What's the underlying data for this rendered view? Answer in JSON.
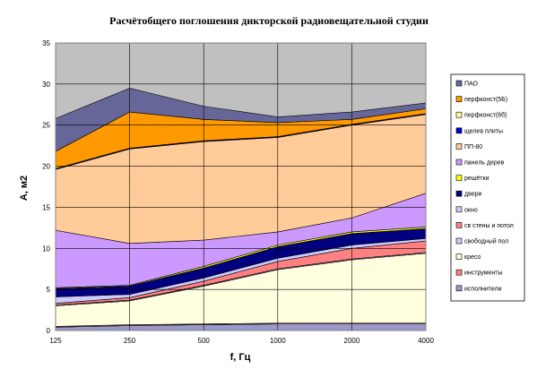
{
  "chart_data": {
    "type": "area",
    "stacked": true,
    "title": "Расчётобщего поглошения дикторской радиовещательной студии",
    "xlabel": "f, Гц",
    "ylabel": "А, м2",
    "x_tick_labels": [
      "125",
      "250",
      "500",
      "1000",
      "2000",
      "4000"
    ],
    "ylim": [
      0,
      35
    ],
    "yticks": [
      0,
      5,
      10,
      15,
      20,
      25,
      30,
      35
    ],
    "grid": true,
    "legend_position": "right",
    "series": [
      {
        "name": "исполнители",
        "color": "#9999cc",
        "values": [
          0.4,
          0.6,
          0.7,
          0.8,
          0.8,
          0.8
        ]
      },
      {
        "name": "инструменты",
        "color": "#ff8080",
        "values": [
          0.1,
          0.1,
          0.1,
          0.1,
          0.1,
          0.1
        ]
      },
      {
        "name": "кресо",
        "color": "#ffffe0",
        "values": [
          2.5,
          2.9,
          4.6,
          6.5,
          7.7,
          8.5
        ]
      },
      {
        "name": "свободный пол",
        "color": "#ccccff",
        "values": [
          0.1,
          0.1,
          0.1,
          0.1,
          0.1,
          0.1
        ]
      },
      {
        "name": "св стены и потол",
        "color": "#ff8080",
        "values": [
          0.2,
          0.3,
          0.5,
          0.9,
          1.3,
          1.4
        ]
      },
      {
        "name": "окно",
        "color": "#ccccff",
        "values": [
          0.8,
          0.4,
          0.4,
          0.4,
          0.4,
          0.3
        ]
      },
      {
        "name": "двери",
        "color": "#000080",
        "values": [
          1.0,
          1.0,
          1.2,
          1.4,
          1.4,
          1.2
        ]
      },
      {
        "name": "решётки",
        "color": "#ffff00",
        "values": [
          0.1,
          0.1,
          0.2,
          0.2,
          0.2,
          0.2
        ]
      },
      {
        "name": "панель дерев",
        "color": "#cc99ff",
        "values": [
          7.0,
          5.1,
          3.2,
          1.6,
          1.7,
          4.1
        ]
      },
      {
        "name": "ПП-80",
        "color": "#ffcc99",
        "values": [
          7.4,
          11.5,
          12.0,
          11.5,
          11.3,
          9.6
        ]
      },
      {
        "name": "щелев плиты",
        "color": "#0000cc",
        "values": [
          0.1,
          0.1,
          0.1,
          0.1,
          0.1,
          0.1
        ]
      },
      {
        "name": "перфконст(6б)",
        "color": "#ffff99",
        "values": [
          0.0,
          0.0,
          0.0,
          0.0,
          0.0,
          0.0
        ]
      },
      {
        "name": "перфконст(5Б)",
        "color": "#ff9900",
        "values": [
          2.1,
          4.4,
          2.6,
          1.7,
          0.6,
          0.6
        ]
      },
      {
        "name": "ПАО",
        "color": "#666699",
        "values": [
          4.0,
          2.9,
          1.6,
          0.7,
          0.9,
          0.7
        ]
      }
    ]
  }
}
